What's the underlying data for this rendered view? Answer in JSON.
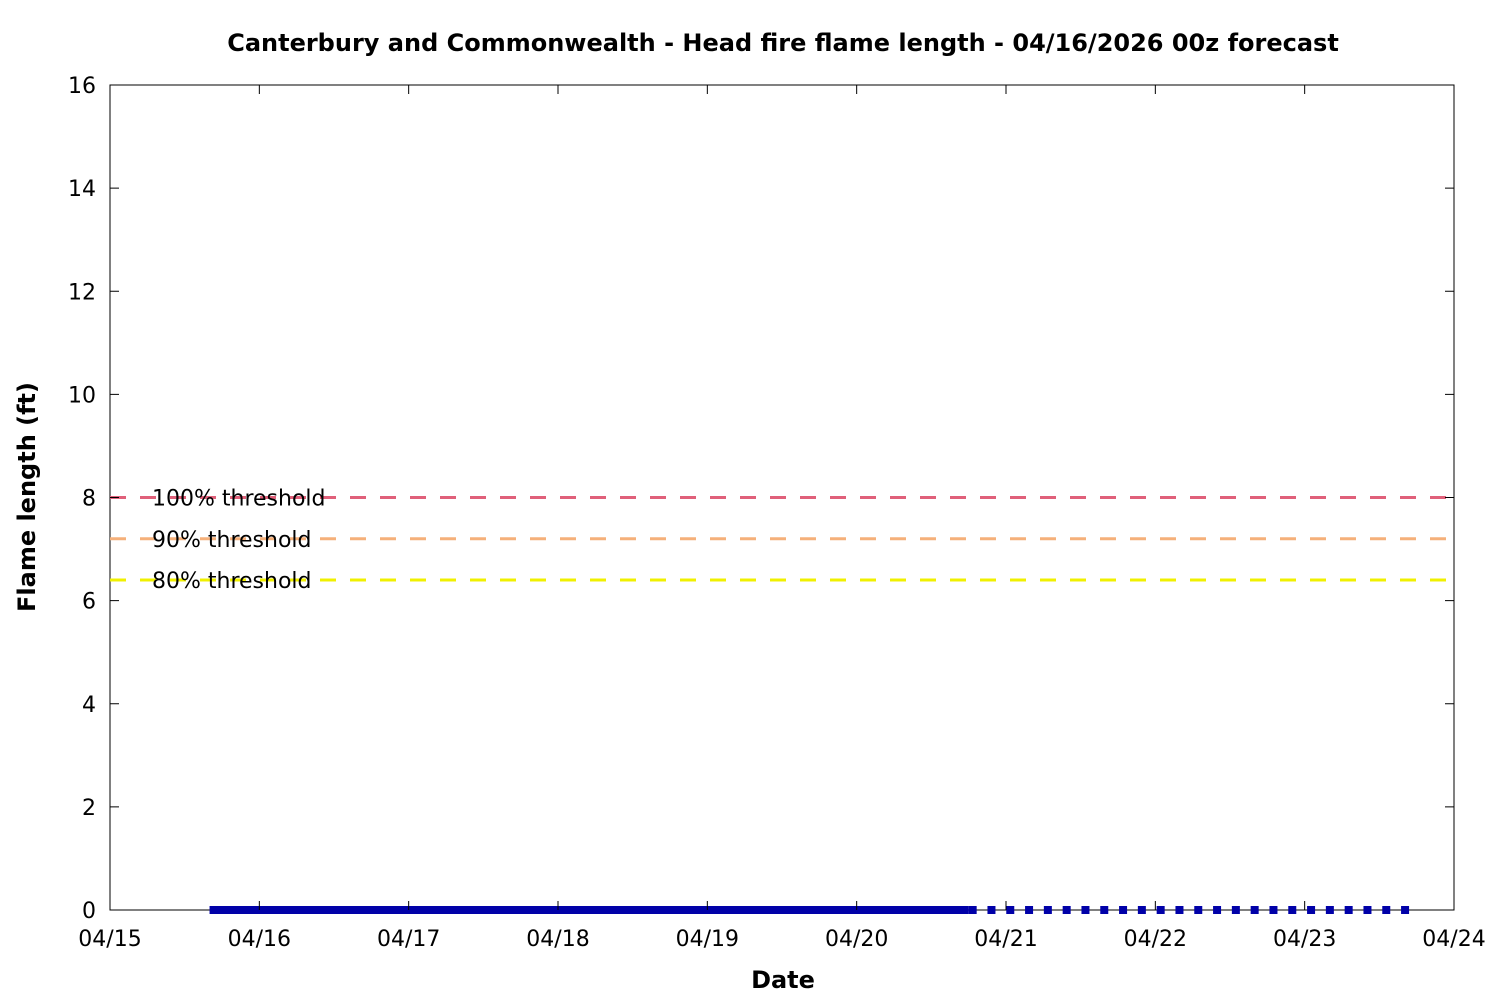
{
  "chart_data": {
    "type": "line",
    "title": "Canterbury and Commonwealth - Head fire flame length - 04/16/2026 00z forecast",
    "xlabel": "Date",
    "ylabel": "Flame length (ft)",
    "x_ticks": [
      "04/15",
      "04/16",
      "04/17",
      "04/18",
      "04/19",
      "04/20",
      "04/21",
      "04/22",
      "04/23",
      "04/24"
    ],
    "xlim": [
      "04/15",
      "04/24"
    ],
    "ylim": [
      0,
      16
    ],
    "y_ticks": [
      "0",
      "2",
      "4",
      "6",
      "8",
      "10",
      "12",
      "14",
      "16"
    ],
    "grid": false,
    "thresholds": [
      {
        "label": "100% threshold",
        "value": 8.0,
        "color": "#e0607a"
      },
      {
        "label": "90% threshold",
        "value": 7.2,
        "color": "#f5b07a"
      },
      {
        "label": "80% threshold",
        "value": 6.4,
        "color": "#f0f000"
      }
    ],
    "series": [
      {
        "style": "solid",
        "color": "#0000a8",
        "x_start": "04/15 16:00",
        "x_end": "04/20 18:00",
        "values": [
          0,
          0
        ]
      },
      {
        "style": "dotted",
        "color": "#0000a8",
        "x_start": "04/20 18:00",
        "x_end": "04/23 18:00",
        "values": [
          0,
          0
        ]
      }
    ]
  }
}
